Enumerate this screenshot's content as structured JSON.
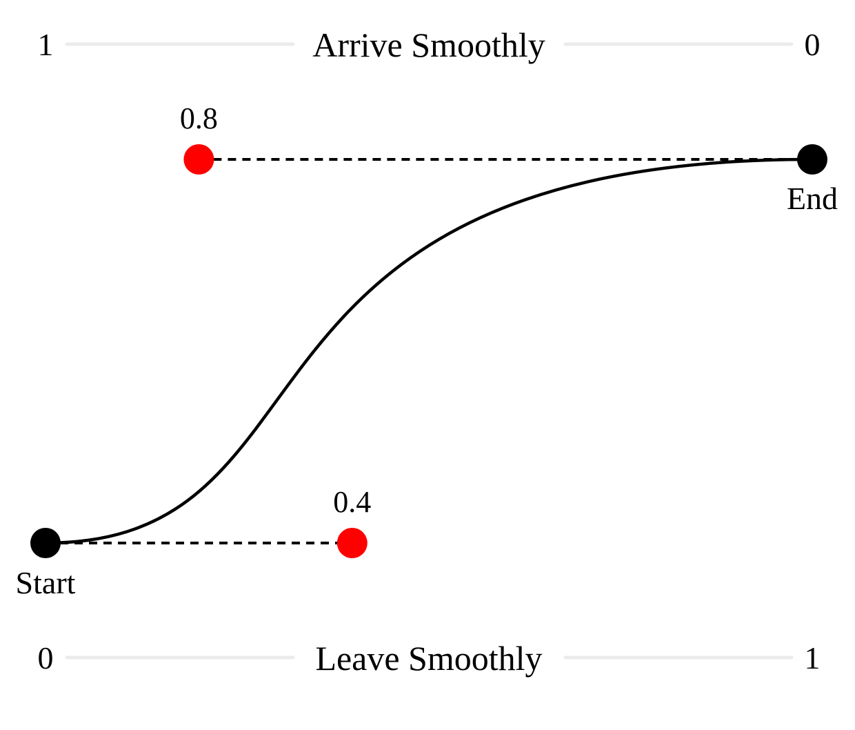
{
  "top_slider": {
    "label": "Arrive Smoothly",
    "left_value": "1",
    "right_value": "0"
  },
  "bottom_slider": {
    "label": "Leave Smoothly",
    "left_value": "0",
    "right_value": "1"
  },
  "points": {
    "start_label": "Start",
    "end_label": "End"
  },
  "handles": {
    "leave": {
      "value": 0.4,
      "label": "0.4"
    },
    "arrive": {
      "value": 0.8,
      "label": "0.8"
    }
  },
  "colors": {
    "handle": "#ff0000",
    "endpoint": "#000000",
    "track": "#ebebeb"
  }
}
